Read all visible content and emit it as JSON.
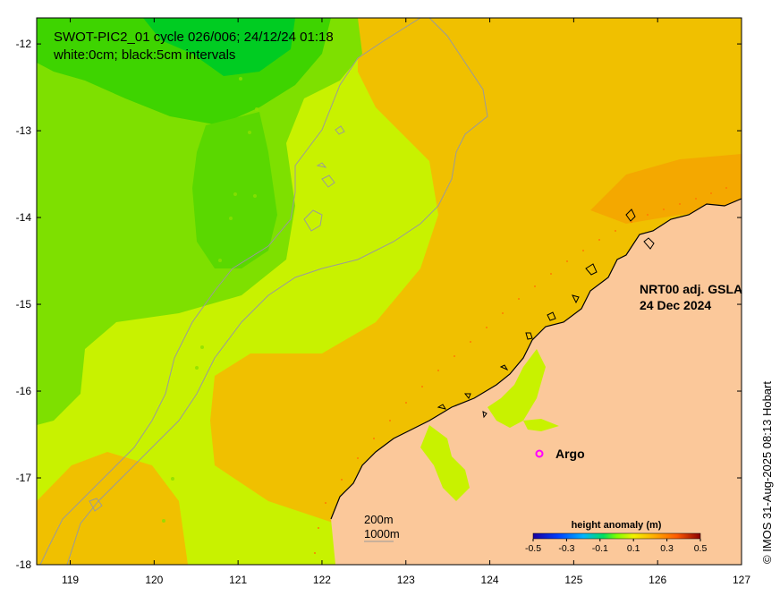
{
  "map": {
    "title_line1": "SWOT-PIC2_01 cycle 026/006; 24/12/24 01:18",
    "title_line2": "white:0cm; black:5cm intervals",
    "product_line1": "NRT00 adj. GSLA",
    "product_line2": "24 Dec 2024",
    "argo_label": "Argo",
    "depth_200": "200m",
    "depth_1000": "1000m",
    "credit": "© IMOS 31-Aug-2025 08:13 Hobart",
    "lon_range": [
      118.6,
      127.0
    ],
    "lat_range": [
      -18.0,
      -11.7
    ]
  },
  "axes": {
    "x_ticks": [
      "119",
      "120",
      "121",
      "122",
      "123",
      "124",
      "125",
      "126",
      "127"
    ],
    "y_ticks": [
      "-12",
      "-13",
      "-14",
      "-15",
      "-16",
      "-17",
      "-18"
    ]
  },
  "colorbar": {
    "title": "height anomaly (m)",
    "ticks": [
      "-0.5",
      "-0.3",
      "-0.1",
      "0.1",
      "0.3",
      "0.5"
    ],
    "range": [
      -0.5,
      0.5
    ]
  },
  "colors": {
    "land": "#fbc89a",
    "ssh_low": "#00cc22",
    "ssh_mid": "#c8f200",
    "ssh_high": "#f0c000",
    "ssh_higher": "#f4a800",
    "argo_marker": "#ff00ff"
  }
}
